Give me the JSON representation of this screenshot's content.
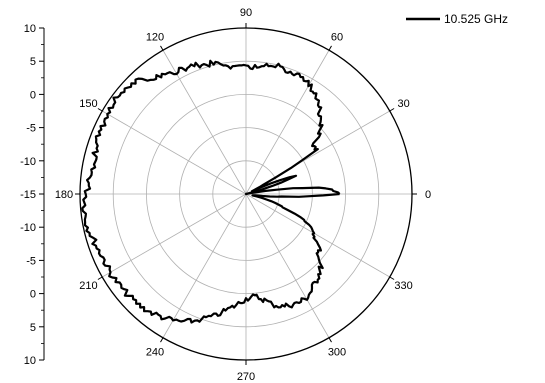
{
  "chart_data": {
    "type": "polar-line",
    "series": [
      {
        "name": "10.525 GHz",
        "color": "#000000",
        "angles_deg": [
          0,
          3,
          5,
          8,
          10,
          11,
          12,
          16,
          20,
          23,
          25,
          28,
          32,
          36,
          40,
          44,
          48,
          52,
          56,
          60,
          64,
          68,
          72,
          76,
          80,
          84,
          88,
          92,
          96,
          100,
          104,
          108,
          112,
          116,
          120,
          124,
          128,
          132,
          136,
          140,
          144,
          148,
          152,
          156,
          160,
          164,
          168,
          172,
          176,
          180,
          184,
          188,
          192,
          196,
          200,
          204,
          208,
          212,
          216,
          220,
          224,
          228,
          232,
          236,
          240,
          244,
          248,
          252,
          256,
          260,
          264,
          268,
          272,
          276,
          280,
          284,
          288,
          292,
          296,
          300,
          304,
          308,
          312,
          316,
          320,
          324,
          328,
          332,
          336,
          340,
          344,
          348,
          352,
          356,
          360
        ],
        "r_db": [
          -0.9,
          -1.8,
          -4,
          -10.3,
          -13.7,
          -14.5,
          -15,
          -12.3,
          -6.8,
          -11,
          -14,
          -12,
          -2.4,
          -2.4,
          -0.5,
          0.7,
          1.5,
          2.8,
          3.4,
          4.0,
          4.5,
          4.6,
          4.7,
          4.8,
          4.6,
          4.4,
          4.1,
          4.0,
          4.3,
          4.9,
          5.3,
          5.5,
          5.8,
          6.0,
          6.3,
          6.6,
          7.3,
          8.3,
          9.0,
          9.3,
          9.4,
          9.3,
          9.1,
          8.9,
          8.8,
          8.6,
          8.5,
          8.5,
          8.7,
          9.0,
          9.3,
          9.4,
          9.3,
          9.0,
          8.8,
          8.5,
          8.6,
          8.6,
          8.5,
          8.4,
          8.3,
          8.1,
          7.8,
          7.4,
          7.0,
          6.4,
          5.6,
          4.6,
          3.9,
          2.8,
          2.0,
          1.1,
          0.5,
          0.6,
          1.2,
          2.2,
          2.8,
          3.0,
          3.2,
          3.1,
          2.6,
          1.9,
          1.3,
          0.7,
          -0.7,
          -1.5,
          -2.8,
          -3.5,
          -5.5,
          -8.7,
          -11,
          -14,
          -13.6,
          -9.2,
          -0.9
        ]
      }
    ],
    "radial_axis": {
      "min": -15,
      "max": 10,
      "major_step": 5,
      "tick_labels": [
        "-15",
        "-10",
        "-5",
        "0",
        "5",
        "10"
      ]
    },
    "angular_axis": {
      "tick_labels": [
        "0",
        "30",
        "60",
        "90",
        "120",
        "150",
        "180",
        "210",
        "240",
        "270",
        "300",
        "330"
      ],
      "zero_direction": "east",
      "direction": "counterclockwise"
    },
    "left_scale": {
      "tick_labels_top_to_bottom": [
        "10",
        "5",
        "0",
        "-5",
        "-10",
        "-15",
        "-10",
        "-5",
        "0",
        "5",
        "10"
      ]
    },
    "grid": true,
    "legend": {
      "position": "top-right",
      "entries": [
        "10.525 GHz"
      ]
    }
  }
}
